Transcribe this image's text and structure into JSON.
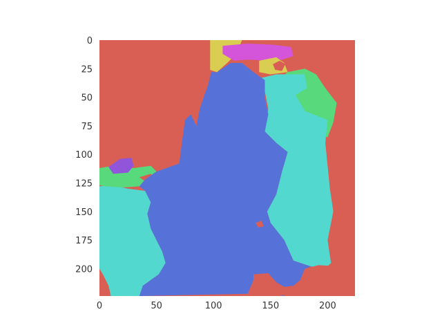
{
  "chart_data": {
    "type": "heatmap",
    "title": "",
    "xlabel": "",
    "ylabel": "",
    "xlim": [
      0,
      224
    ],
    "ylim": [
      224,
      0
    ],
    "grid": false,
    "x_ticks": [
      "0",
      "50",
      "100",
      "150",
      "200"
    ],
    "y_ticks": [
      "0",
      "25",
      "50",
      "75",
      "100",
      "125",
      "150",
      "175",
      "200"
    ],
    "x_tick_values": [
      0,
      50,
      100,
      150,
      200
    ],
    "y_tick_values": [
      0,
      25,
      50,
      75,
      100,
      125,
      150,
      175,
      200
    ],
    "colors": {
      "background": "#d95f55",
      "body": "#5672d9",
      "cyan": "#52d8cf",
      "green": "#57d97c",
      "yellow": "#d9ce52",
      "magenta": "#d455d9",
      "purple": "#9055d9"
    },
    "regions": [
      {
        "name": "cyan-left",
        "color": "#52d8cf",
        "points": [
          [
            0,
            128
          ],
          [
            10,
            127
          ],
          [
            25,
            130
          ],
          [
            40,
            132
          ],
          [
            45,
            142
          ],
          [
            42,
            152
          ],
          [
            45,
            165
          ],
          [
            50,
            175
          ],
          [
            55,
            185
          ],
          [
            58,
            195
          ],
          [
            52,
            205
          ],
          [
            45,
            210
          ],
          [
            38,
            215
          ],
          [
            35,
            224
          ],
          [
            10,
            224
          ],
          [
            8,
            215
          ],
          [
            3,
            205
          ],
          [
            0,
            200
          ]
        ]
      },
      {
        "name": "green-left",
        "color": "#57d97c",
        "points": [
          [
            0,
            112
          ],
          [
            12,
            110
          ],
          [
            30,
            112
          ],
          [
            45,
            110
          ],
          [
            50,
            115
          ],
          [
            40,
            122
          ],
          [
            35,
            128
          ],
          [
            20,
            129
          ],
          [
            5,
            128
          ],
          [
            0,
            127
          ]
        ]
      },
      {
        "name": "purple-left",
        "color": "#9055d9",
        "points": [
          [
            8,
            111
          ],
          [
            18,
            104
          ],
          [
            28,
            103
          ],
          [
            30,
            110
          ],
          [
            25,
            116
          ],
          [
            12,
            117
          ]
        ]
      },
      {
        "name": "red-small-left",
        "color": "#d95f55",
        "points": [
          [
            35,
            120
          ],
          [
            45,
            117
          ],
          [
            48,
            122
          ],
          [
            42,
            125
          ]
        ]
      },
      {
        "name": "cyan-right",
        "color": "#52d8cf",
        "points": [
          [
            142,
            33
          ],
          [
            155,
            30
          ],
          [
            180,
            30
          ],
          [
            182,
            42
          ],
          [
            172,
            48
          ],
          [
            180,
            62
          ],
          [
            200,
            70
          ],
          [
            198,
            90
          ],
          [
            200,
            110
          ],
          [
            202,
            130
          ],
          [
            205,
            150
          ],
          [
            200,
            175
          ],
          [
            203,
            195
          ],
          [
            198,
            200
          ],
          [
            185,
            198
          ],
          [
            170,
            193
          ],
          [
            162,
            175
          ],
          [
            150,
            160
          ],
          [
            147,
            150
          ],
          [
            155,
            135
          ],
          [
            160,
            115
          ],
          [
            165,
            98
          ],
          [
            155,
            90
          ],
          [
            145,
            80
          ],
          [
            148,
            60
          ],
          [
            145,
            45
          ]
        ]
      },
      {
        "name": "green-right",
        "color": "#57d97c",
        "points": [
          [
            150,
            40
          ],
          [
            165,
            28
          ],
          [
            180,
            25
          ],
          [
            190,
            30
          ],
          [
            198,
            42
          ],
          [
            208,
            55
          ],
          [
            205,
            72
          ],
          [
            200,
            85
          ],
          [
            195,
            84
          ],
          [
            180,
            80
          ],
          [
            172,
            70
          ],
          [
            165,
            60
          ],
          [
            160,
            45
          ]
        ]
      },
      {
        "name": "yellow-top",
        "color": "#d9ce52",
        "points": [
          [
            97,
            0
          ],
          [
            110,
            0
          ],
          [
            125,
            0
          ],
          [
            120,
            12
          ],
          [
            112,
            20
          ],
          [
            103,
            28
          ],
          [
            97,
            26
          ]
        ]
      },
      {
        "name": "magenta-top",
        "color": "#d455d9",
        "points": [
          [
            108,
            5
          ],
          [
            130,
            3
          ],
          [
            152,
            4
          ],
          [
            168,
            6
          ],
          [
            170,
            14
          ],
          [
            160,
            17
          ],
          [
            148,
            18
          ],
          [
            130,
            17
          ],
          [
            118,
            18
          ],
          [
            108,
            12
          ]
        ]
      },
      {
        "name": "yellow-right",
        "color": "#d9ce52",
        "points": [
          [
            140,
            18
          ],
          [
            155,
            15
          ],
          [
            162,
            20
          ],
          [
            165,
            28
          ],
          [
            150,
            30
          ],
          [
            140,
            28
          ]
        ]
      },
      {
        "name": "red-spot-top",
        "color": "#d95f55",
        "points": [
          [
            152,
            21
          ],
          [
            158,
            18
          ],
          [
            163,
            21
          ],
          [
            160,
            27
          ],
          [
            154,
            26
          ]
        ]
      },
      {
        "name": "red-spot-mid",
        "color": "#d95f55",
        "points": [
          [
            137,
            160
          ],
          [
            142,
            158
          ],
          [
            144,
            163
          ],
          [
            139,
            164
          ]
        ]
      },
      {
        "name": "red-bottom",
        "color": "#d95f55",
        "points": [
          [
            135,
            205
          ],
          [
            148,
            204
          ],
          [
            155,
            212
          ],
          [
            162,
            216
          ],
          [
            170,
            215
          ],
          [
            176,
            210
          ],
          [
            180,
            200
          ],
          [
            192,
            197
          ],
          [
            210,
            198
          ],
          [
            224,
            197
          ],
          [
            224,
            224
          ],
          [
            170,
            224
          ],
          [
            145,
            222
          ],
          [
            135,
            214
          ]
        ]
      }
    ],
    "body_region": {
      "name": "blue-body",
      "color": "#5672d9",
      "points": [
        [
          98,
          28
        ],
        [
          103,
          28
        ],
        [
          115,
          20
        ],
        [
          125,
          20
        ],
        [
          135,
          28
        ],
        [
          145,
          35
        ],
        [
          145,
          50
        ],
        [
          148,
          65
        ],
        [
          145,
          80
        ],
        [
          155,
          90
        ],
        [
          165,
          98
        ],
        [
          160,
          115
        ],
        [
          155,
          135
        ],
        [
          147,
          150
        ],
        [
          150,
          160
        ],
        [
          162,
          175
        ],
        [
          170,
          193
        ],
        [
          185,
          198
        ],
        [
          178,
          205
        ],
        [
          175,
          215
        ],
        [
          170,
          222
        ],
        [
          160,
          224
        ],
        [
          150,
          215
        ],
        [
          135,
          210
        ],
        [
          130,
          222
        ],
        [
          35,
          224
        ],
        [
          38,
          215
        ],
        [
          45,
          210
        ],
        [
          52,
          205
        ],
        [
          58,
          195
        ],
        [
          55,
          185
        ],
        [
          50,
          175
        ],
        [
          45,
          165
        ],
        [
          42,
          152
        ],
        [
          45,
          142
        ],
        [
          40,
          132
        ],
        [
          35,
          128
        ],
        [
          40,
          122
        ],
        [
          50,
          115
        ],
        [
          70,
          108
        ],
        [
          72,
          92
        ],
        [
          75,
          70
        ],
        [
          80,
          65
        ],
        [
          85,
          75
        ],
        [
          88,
          60
        ],
        [
          92,
          48
        ],
        [
          95,
          40
        ]
      ]
    }
  }
}
